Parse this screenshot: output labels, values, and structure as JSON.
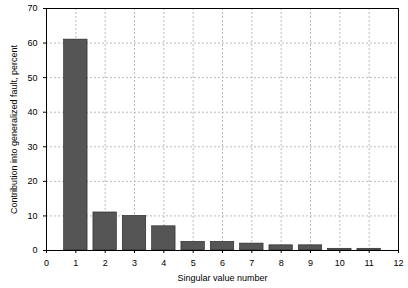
{
  "chart_data": {
    "type": "bar",
    "x_label": "Singular value number",
    "y_label": "Contribution into generalized fault, percent",
    "x": [
      1,
      2,
      3,
      4,
      5,
      6,
      7,
      8,
      9,
      10,
      11
    ],
    "values": [
      61,
      11,
      10,
      7,
      2.5,
      2.5,
      2,
      1.5,
      1.5,
      0.5,
      0.5
    ],
    "color": "#555555",
    "xlim": [
      0,
      12
    ],
    "xticks": [
      0,
      1,
      2,
      3,
      4,
      5,
      6,
      7,
      8,
      9,
      10,
      11,
      12
    ],
    "ylim": [
      0,
      70
    ],
    "yticks": [
      0,
      10,
      20,
      30,
      40,
      50,
      60,
      70
    ],
    "grid": true
  }
}
